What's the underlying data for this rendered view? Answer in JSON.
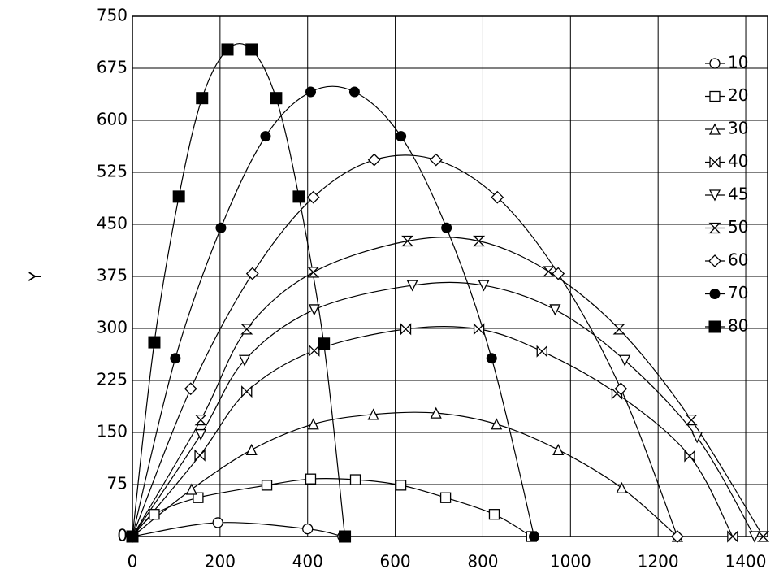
{
  "chart_data": {
    "type": "line",
    "ylabel": "Y",
    "xlim": [
      0,
      1450
    ],
    "ylim": [
      0,
      750
    ],
    "xticks": [
      0,
      200,
      400,
      600,
      800,
      1000,
      1200,
      1400
    ],
    "yticks": [
      0,
      75,
      150,
      225,
      300,
      375,
      450,
      525,
      600,
      675,
      750
    ],
    "grid": true,
    "legend": "right",
    "series": [
      {
        "name": "10",
        "color": "#000000",
        "marker": "circle-open",
        "x": [
          0,
          195,
          400,
          480
        ],
        "values": [
          0,
          20,
          11,
          0
        ]
      },
      {
        "name": "20",
        "color": "#000000",
        "marker": "square-open",
        "x": [
          0,
          50,
          150,
          307,
          407,
          509,
          613,
          715,
          826,
          911
        ],
        "values": [
          0,
          32,
          56,
          74,
          83,
          82,
          74,
          56,
          32,
          0
        ]
      },
      {
        "name": "30",
        "color": "#000000",
        "marker": "triangle-open",
        "x": [
          0,
          135,
          272,
          413,
          550,
          693,
          831,
          972,
          1117,
          1244
        ],
        "values": [
          0,
          68,
          125,
          162,
          176,
          178,
          162,
          125,
          70,
          0
        ]
      },
      {
        "name": "40",
        "color": "#000000",
        "marker": "bowtie",
        "x": [
          0,
          154,
          261,
          415,
          624,
          791,
          935,
          1106,
          1272,
          1370
        ],
        "values": [
          0,
          117,
          209,
          268,
          299,
          299,
          267,
          206,
          116,
          0
        ]
      },
      {
        "name": "45",
        "color": "#000000",
        "marker": "triangle-down-open",
        "x": [
          0,
          156,
          256,
          415,
          639,
          802,
          965,
          1124,
          1289,
          1420
        ],
        "values": [
          0,
          147,
          254,
          327,
          362,
          362,
          327,
          254,
          143,
          0
        ]
      },
      {
        "name": "50",
        "color": "#000000",
        "marker": "hourglass",
        "x": [
          0,
          156,
          261,
          413,
          628,
          791,
          950,
          1111,
          1276,
          1440
        ],
        "values": [
          0,
          168,
          299,
          381,
          426,
          426,
          382,
          299,
          168,
          0
        ]
      },
      {
        "name": "60",
        "color": "#000000",
        "marker": "diamond-open",
        "x": [
          0,
          133,
          274,
          413,
          552,
          693,
          833,
          972,
          1115,
          1244
        ],
        "values": [
          0,
          213,
          379,
          489,
          543,
          543,
          489,
          379,
          213,
          0
        ]
      },
      {
        "name": "70",
        "color": "#000000",
        "marker": "circle-filled",
        "x": [
          0,
          98,
          202,
          304,
          407,
          507,
          613,
          717,
          820,
          917
        ],
        "values": [
          0,
          257,
          445,
          577,
          641,
          641,
          577,
          445,
          257,
          0
        ]
      },
      {
        "name": "80",
        "color": "#000000",
        "marker": "square-filled",
        "x": [
          0,
          50,
          106,
          159,
          217,
          272,
          328,
          380,
          437,
          485
        ],
        "values": [
          0,
          280,
          490,
          632,
          702,
          702,
          632,
          490,
          278,
          0
        ]
      }
    ]
  }
}
